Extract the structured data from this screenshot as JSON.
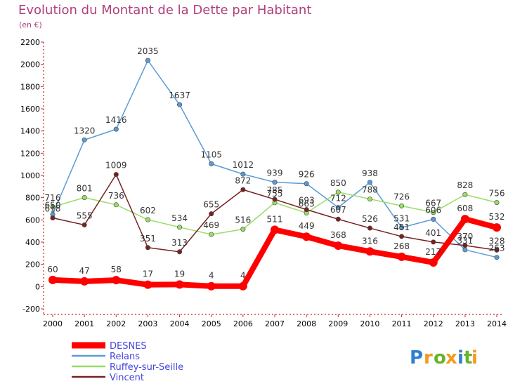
{
  "chart_data": {
    "type": "line",
    "title": "Evolution du Montant de la Dette par Habitant",
    "subtitle": "(en €)",
    "x": [
      "2000",
      "2001",
      "2002",
      "2003",
      "2004",
      "2005",
      "2006",
      "2007",
      "2008",
      "2009",
      "2010",
      "2011",
      "2012",
      "2013",
      "2014"
    ],
    "yticks": [
      -200,
      0,
      200,
      400,
      600,
      800,
      1000,
      1200,
      1400,
      1600,
      1800,
      2000,
      2200
    ],
    "ylim": [
      -200,
      2200
    ],
    "grid": false,
    "legend_position": "bottom-left",
    "series": [
      {
        "name": "DESNES",
        "color": "#ff0000",
        "values": [
          60,
          47,
          58,
          17,
          19,
          4,
          4,
          511,
          449,
          368,
          316,
          268,
          217,
          608,
          532
        ]
      },
      {
        "name": "Relans",
        "color": "#5b9bd5",
        "values": [
          650,
          1320,
          1416,
          2035,
          1637,
          1105,
          1012,
          939,
          926,
          712,
          938,
          531,
          606,
          331,
          263
        ]
      },
      {
        "name": "Ruffey-sur-Seille",
        "color": "#99dd66",
        "values": [
          716,
          801,
          736,
          602,
          534,
          469,
          516,
          755,
          663,
          850,
          788,
          726,
          667,
          828,
          756
        ]
      },
      {
        "name": "Vincent",
        "color": "#772222",
        "values": [
          618,
          555,
          1009,
          351,
          313,
          655,
          872,
          785,
          693,
          607,
          526,
          451,
          401,
          370,
          328
        ]
      }
    ]
  },
  "logo": {
    "letters": [
      "P",
      "r",
      "o",
      "x",
      "i",
      "t",
      "i"
    ],
    "colors": [
      "#2f7fd1",
      "#f29b1d",
      "#69b32b",
      "#f29b1d",
      "#2f7fd1",
      "#69b32b",
      "#f29b1d"
    ]
  }
}
